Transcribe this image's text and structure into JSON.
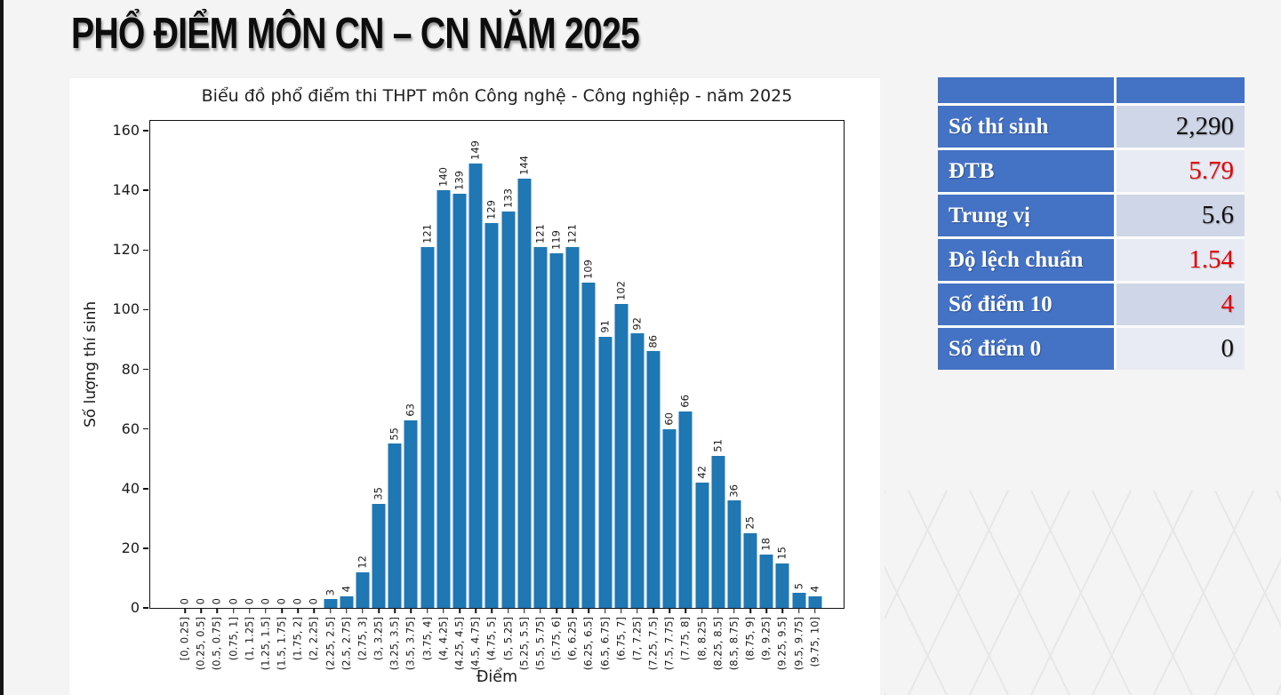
{
  "slide": {
    "title": "PHỔ ĐIỂM MÔN CN – CN NĂM 2025"
  },
  "chart_data": {
    "type": "bar",
    "title": "Biểu đồ phổ điểm thi THPT môn Công nghệ - Công nghiệp - năm 2025",
    "xlabel": "Điểm",
    "ylabel": "Số lượng thí sinh",
    "categories": [
      "[0, 0.25]",
      "(0.25, 0.5]",
      "(0.5, 0.75]",
      "(0.75, 1]",
      "(1, 1.25]",
      "(1.25, 1.5]",
      "(1.5, 1.75]",
      "(1.75, 2]",
      "(2, 2.25]",
      "(2.25, 2.5]",
      "(2.5, 2.75]",
      "(2.75, 3]",
      "(3, 3.25]",
      "(3.25, 3.5]",
      "(3.5, 3.75]",
      "(3.75, 4]",
      "(4, 4.25]",
      "(4.25, 4.5]",
      "(4.5, 4.75]",
      "(4.75, 5]",
      "(5, 5.25]",
      "(5.25, 5.5]",
      "(5.5, 5.75]",
      "(5.75, 6]",
      "(6, 6.25]",
      "(6.25, 6.5]",
      "(6.5, 6.75]",
      "(6.75, 7]",
      "(7, 7.25]",
      "(7.25, 7.5]",
      "(7.5, 7.75]",
      "(7.75, 8]",
      "(8, 8.25]",
      "(8.25, 8.5]",
      "(8.5, 8.75]",
      "(8.75, 9]",
      "(9, 9.25]",
      "(9.25, 9.5]",
      "(9.5, 9.75]",
      "(9.75, 10]"
    ],
    "values": [
      0,
      0,
      0,
      0,
      0,
      0,
      0,
      0,
      0,
      3,
      4,
      12,
      35,
      55,
      63,
      121,
      140,
      139,
      149,
      129,
      133,
      144,
      121,
      119,
      121,
      109,
      91,
      102,
      92,
      86,
      60,
      66,
      42,
      51,
      36,
      25,
      18,
      15,
      5,
      4
    ],
    "ylim": [
      0,
      160
    ],
    "yticks": [
      0,
      20,
      40,
      60,
      80,
      100,
      120,
      140,
      160
    ],
    "bar_color": "#1f77b4",
    "grid": false,
    "bar_label_rotation": 90,
    "xtick_rotation": 90,
    "legend": "none"
  },
  "stats_table": {
    "header_color": "#4472c4",
    "band_colors": [
      "#cfd6e7",
      "#e9ebf4"
    ],
    "rows": [
      {
        "label": "Số thí sinh",
        "value": "2,290",
        "value_color": "#111111"
      },
      {
        "label": "ĐTB",
        "value": "5.79",
        "value_color": "#e50000"
      },
      {
        "label": "Trung vị",
        "value": "5.6",
        "value_color": "#111111"
      },
      {
        "label": "Độ lệch chuẩn",
        "value": "1.54",
        "value_color": "#e50000"
      },
      {
        "label": "Số điểm 10",
        "value": "4",
        "value_color": "#e50000"
      },
      {
        "label": "Số điểm 0",
        "value": "0",
        "value_color": "#111111"
      }
    ]
  }
}
